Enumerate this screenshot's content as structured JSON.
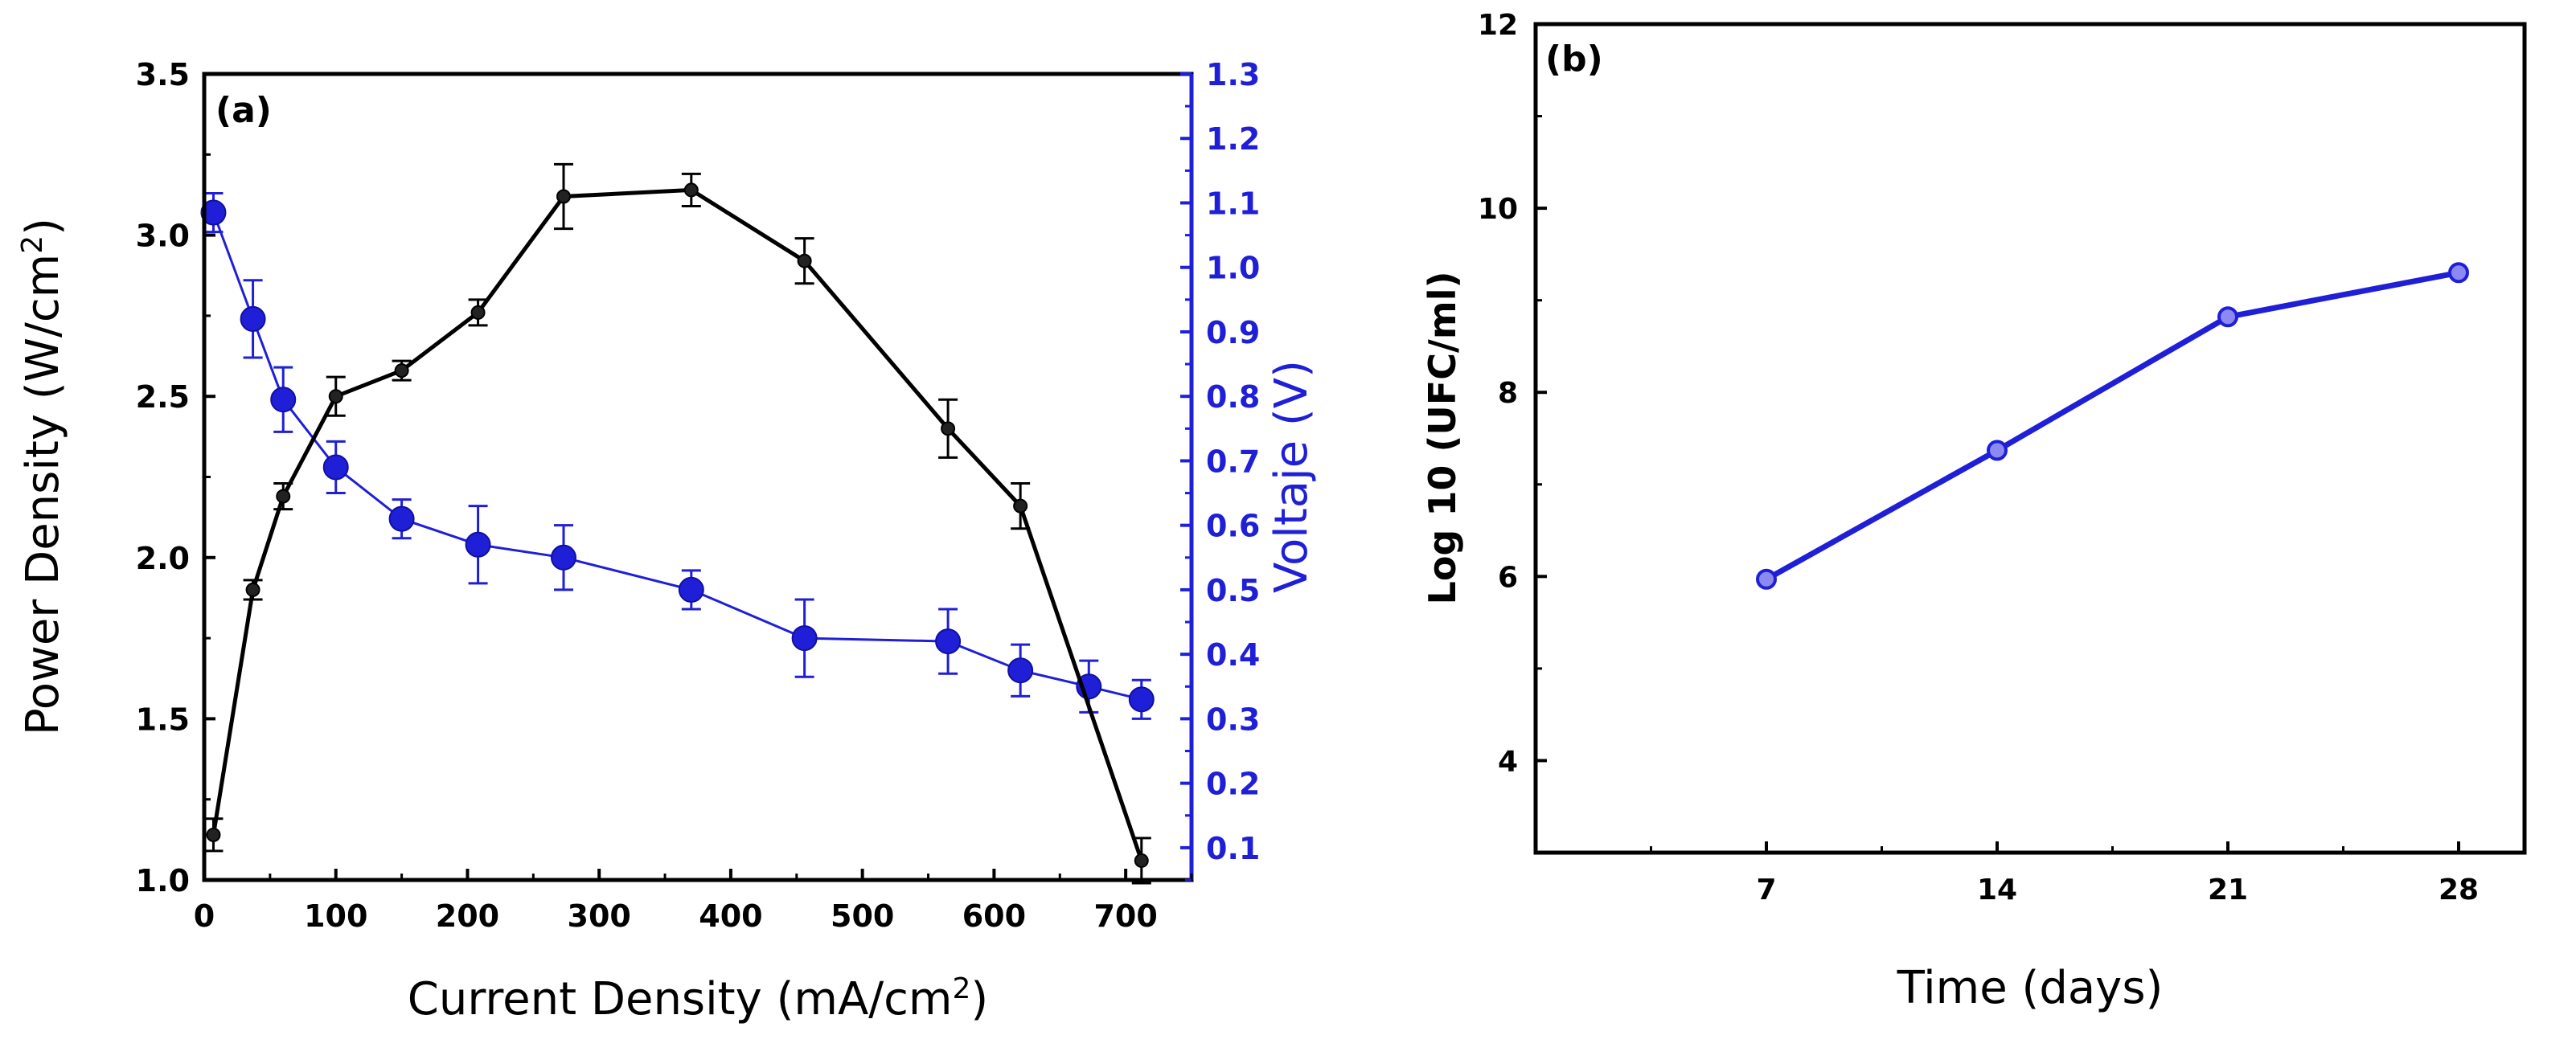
{
  "chart_data": [
    {
      "panel": "(a)",
      "type": "line",
      "xlabel": "Current Density (mA/cm",
      "xlabel_sup": "2",
      "xlabel_end": ")",
      "ylabel": "Power Density (W/cm",
      "ylabel_sup": "2",
      "ylabel_end": ")",
      "y2label": "Voltaje (V)",
      "xlim": [
        0,
        750
      ],
      "ylim": [
        1.0,
        3.5
      ],
      "y2lim": [
        0.05,
        1.3
      ],
      "x_ticks": [
        "0",
        "100",
        "200",
        "300",
        "400",
        "500",
        "600",
        "700"
      ],
      "y_ticks": [
        "1.0",
        "1.5",
        "2.0",
        "2.5",
        "3.0",
        "3.5"
      ],
      "y2_ticks": [
        "0.1",
        "0.2",
        "0.3",
        "0.4",
        "0.5",
        "0.6",
        "0.7",
        "0.8",
        "0.9",
        "1.0",
        "1.1",
        "1.2",
        "1.3"
      ],
      "series": [
        {
          "name": "Power Density",
          "axis": "left",
          "color": "#000000",
          "x": [
            7,
            37,
            60,
            100,
            150,
            208,
            273,
            370,
            456,
            565,
            620,
            712
          ],
          "values": [
            1.14,
            1.9,
            2.19,
            2.5,
            2.58,
            2.76,
            3.12,
            3.14,
            2.92,
            2.4,
            2.16,
            1.06
          ],
          "errors": [
            0.05,
            0.03,
            0.04,
            0.06,
            0.03,
            0.04,
            0.1,
            0.05,
            0.07,
            0.09,
            0.07,
            0.07
          ]
        },
        {
          "name": "Voltaje",
          "axis": "right",
          "color": "#1f1fd8",
          "x": [
            7,
            37,
            60,
            100,
            150,
            208,
            273,
            370,
            456,
            565,
            620,
            672,
            712
          ],
          "values": [
            1.085,
            0.92,
            0.795,
            0.69,
            0.61,
            0.57,
            0.55,
            0.5,
            0.425,
            0.42,
            0.375,
            0.35,
            0.33
          ],
          "errors": [
            0.03,
            0.06,
            0.05,
            0.04,
            0.03,
            0.06,
            0.05,
            0.03,
            0.06,
            0.05,
            0.04,
            0.04,
            0.03
          ]
        }
      ]
    },
    {
      "panel": "(b)",
      "type": "line",
      "xlabel": "Time (days)",
      "ylabel": "Log 10 (UFC/ml)",
      "xlim": [
        0,
        30
      ],
      "ylim": [
        3,
        12
      ],
      "x_ticks": [
        "7",
        "14",
        "21",
        "28"
      ],
      "y_ticks": [
        "4",
        "6",
        "8",
        "10",
        "12"
      ],
      "series": [
        {
          "name": "Log 10 (UFC/ml)",
          "color": "#1f1fd8",
          "x": [
            7,
            14,
            21,
            28
          ],
          "values": [
            5.97,
            7.37,
            8.82,
            9.3
          ]
        }
      ]
    }
  ]
}
